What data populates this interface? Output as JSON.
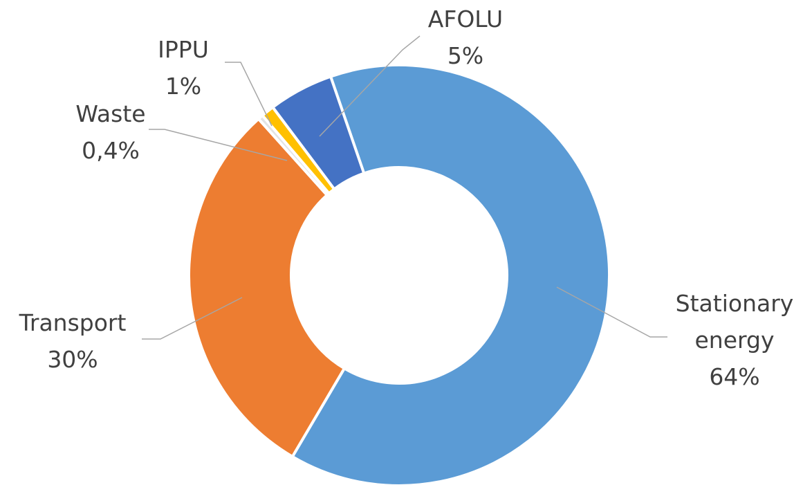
{
  "chart_data": {
    "type": "donut",
    "categories": [
      "Stationary energy",
      "Transport",
      "Waste",
      "IPPU",
      "AFOLU"
    ],
    "values": [
      64,
      30,
      0.4,
      1,
      5
    ],
    "value_labels": [
      "64%",
      "30%",
      "0,4%",
      "1%",
      "5%"
    ],
    "colors": [
      "#5b9bd5",
      "#ed7d31",
      "#e4e4e4",
      "#ffc000",
      "#4472c4"
    ]
  }
}
